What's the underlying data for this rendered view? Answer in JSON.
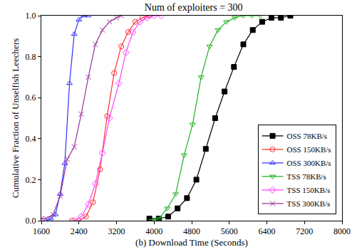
{
  "chart_data": {
    "type": "line",
    "title": "Num of exploiters = 300",
    "x_label": "(b) Download Time (Seconds)",
    "y_label": "Cumulative Fraction of Unselfish Leechers",
    "xlim": [
      1600,
      8000
    ],
    "xticks": [
      1600,
      2400,
      3200,
      4000,
      4800,
      5600,
      6400,
      7200,
      8000
    ],
    "ylim": [
      0,
      1
    ],
    "yticks": [
      {
        "value": 0,
        "label": "0.0"
      },
      {
        "value": 0.2,
        "label": "0.2"
      },
      {
        "value": 0.4,
        "label": "0.4"
      },
      {
        "value": 0.6,
        "label": "0.6"
      },
      {
        "value": 0.8,
        "label": "0.8"
      },
      {
        "value": 1,
        "label": "1.0"
      }
    ],
    "grid": false,
    "legend": "bottom right",
    "series": [
      {
        "name": "OSS 78KB/s",
        "color": "#000000",
        "marker": "square",
        "x": [
          3900,
          4100,
          4300,
          4500,
          4700,
          4900,
          5100,
          5300,
          5500,
          5700,
          5900,
          6100,
          6300,
          6500,
          6700,
          6900
        ],
        "values": [
          0.01,
          0.01,
          0.02,
          0.06,
          0.11,
          0.2,
          0.35,
          0.5,
          0.63,
          0.75,
          0.86,
          0.93,
          0.97,
          0.99,
          0.99,
          1.0
        ]
      },
      {
        "name": "OSS 150KB/s",
        "color": "#ff3030",
        "marker": "circle-open",
        "x": [
          2250,
          2400,
          2550,
          2700,
          2850,
          3000,
          3150,
          3300,
          3450,
          3600,
          3750,
          3900
        ],
        "values": [
          0.0,
          0.0,
          0.02,
          0.09,
          0.25,
          0.51,
          0.72,
          0.85,
          0.92,
          0.97,
          0.99,
          1.0
        ]
      },
      {
        "name": "OSS 300KB/s",
        "color": "#3030ff",
        "marker": "triangle-up-open",
        "x": [
          1700,
          1800,
          1900,
          2000,
          2100,
          2200,
          2300,
          2400,
          2500,
          2600
        ],
        "values": [
          0.0,
          0.01,
          0.03,
          0.13,
          0.28,
          0.67,
          0.91,
          0.98,
          1.0,
          1.0
        ]
      },
      {
        "name": "TSS 78KB/s",
        "color": "#20b020",
        "marker": "triangle-down-open",
        "x": [
          3950,
          4100,
          4280,
          4460,
          4640,
          4820,
          5000,
          5180,
          5360,
          5540,
          5720,
          5900,
          6080,
          6260
        ],
        "values": [
          0.0,
          0.01,
          0.06,
          0.13,
          0.32,
          0.47,
          0.7,
          0.85,
          0.93,
          0.97,
          0.99,
          1.0,
          1.0,
          1.0
        ]
      },
      {
        "name": "TSS 150KB/s",
        "color": "#ff40ff",
        "marker": "diamond-open",
        "x": [
          2300,
          2450,
          2600,
          2750,
          2900,
          3050,
          3250,
          3400,
          3550,
          3700,
          3850,
          4000,
          4150
        ],
        "values": [
          0.0,
          0.02,
          0.08,
          0.18,
          0.33,
          0.5,
          0.67,
          0.82,
          0.92,
          0.97,
          0.99,
          1.0,
          1.0
        ]
      },
      {
        "name": "TSS 300KB/s",
        "color": "#993399",
        "marker": "x-thin-open",
        "x": [
          1600,
          1700,
          1850,
          2000,
          2150,
          2300,
          2450,
          2600,
          2750,
          2900,
          3050,
          3200,
          3300
        ],
        "values": [
          0.01,
          0.01,
          0.03,
          0.12,
          0.3,
          0.36,
          0.52,
          0.7,
          0.86,
          0.93,
          0.97,
          0.99,
          1.0
        ]
      }
    ]
  }
}
